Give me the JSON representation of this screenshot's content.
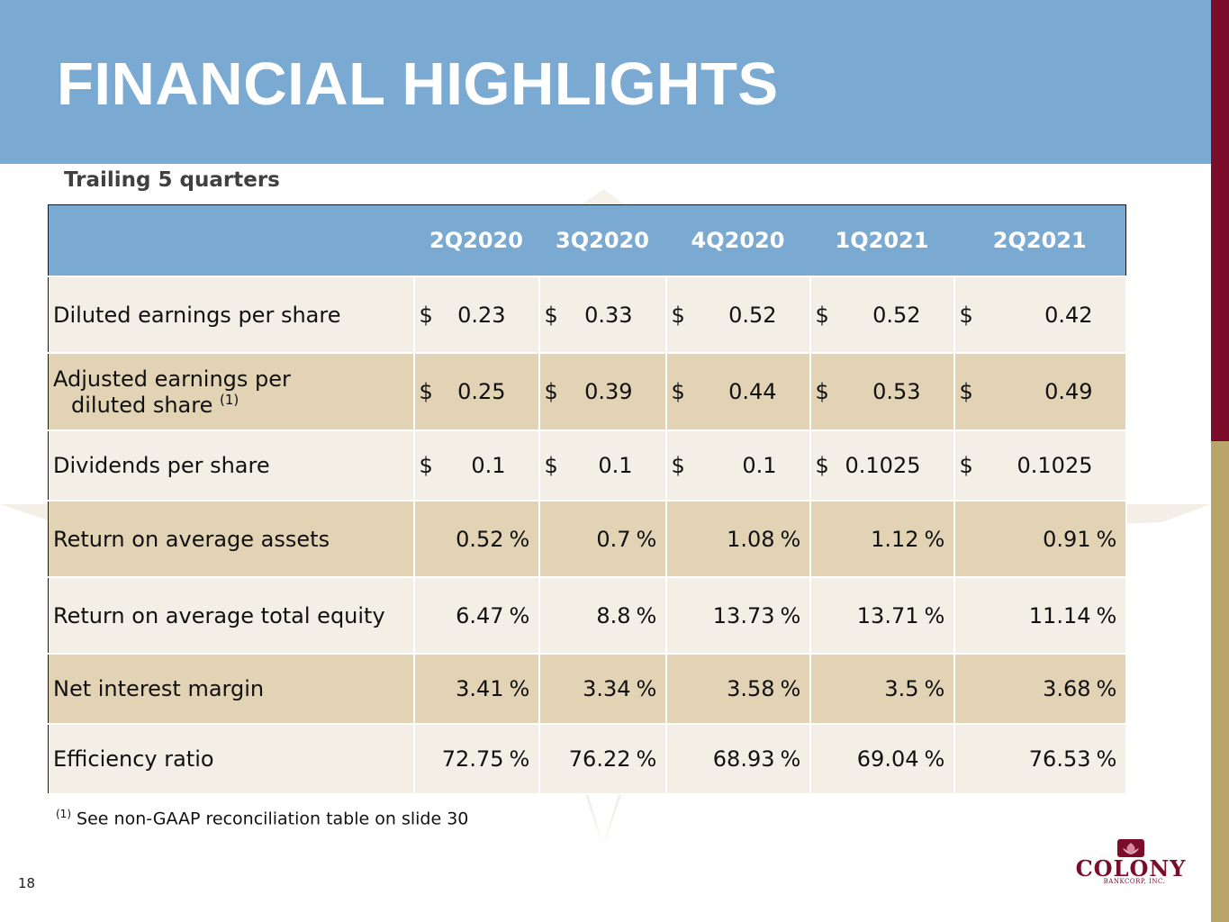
{
  "title": "FINANCIAL HIGHLIGHTS",
  "subtitle": "Trailing 5 quarters",
  "table": {
    "headers": [
      "",
      "2Q2020",
      "3Q2020",
      "4Q2020",
      "1Q2021",
      "2Q2021"
    ],
    "rows": [
      {
        "label": "Diluted earnings per share",
        "currency": "$",
        "values": [
          "0.23",
          "0.33",
          "0.52",
          "0.52",
          "0.42"
        ]
      },
      {
        "label_line1": "Adjusted earnings per",
        "label_line2": "diluted share",
        "footnote_marker": "(1)",
        "currency": "$",
        "values": [
          "0.25",
          "0.39",
          "0.44",
          "0.53",
          "0.49"
        ]
      },
      {
        "label": "Dividends per share",
        "currency": "$",
        "values": [
          "0.1",
          "0.1",
          "0.1",
          "0.1025",
          "0.1025"
        ]
      },
      {
        "label": "Return on average assets",
        "unit": "%",
        "values": [
          "0.52",
          "0.7",
          "1.08",
          "1.12",
          "0.91"
        ]
      },
      {
        "label": "Return on average total equity",
        "unit": "%",
        "values": [
          "6.47",
          "8.8",
          "13.73",
          "13.71",
          "11.14"
        ]
      },
      {
        "label": "Net interest margin",
        "unit": "%",
        "values": [
          "3.41",
          "3.34",
          "3.58",
          "3.5",
          "3.68"
        ]
      },
      {
        "label": "Efficiency ratio",
        "unit": "%",
        "values": [
          "72.75",
          "76.22",
          "68.93",
          "69.04",
          "76.53"
        ]
      }
    ]
  },
  "footnote": {
    "marker": "(1)",
    "text": "See non-GAAP reconciliation table on slide 30"
  },
  "page_number": "18",
  "logo": {
    "name": "COLONY",
    "subtext": "BANKCORP, INC."
  },
  "colors": {
    "header_blue": "#7aaad2",
    "maroon": "#7b0d2a",
    "gold": "#b9a46a",
    "row_light": "#f3efe6",
    "row_dark": "#e2d3b5"
  }
}
